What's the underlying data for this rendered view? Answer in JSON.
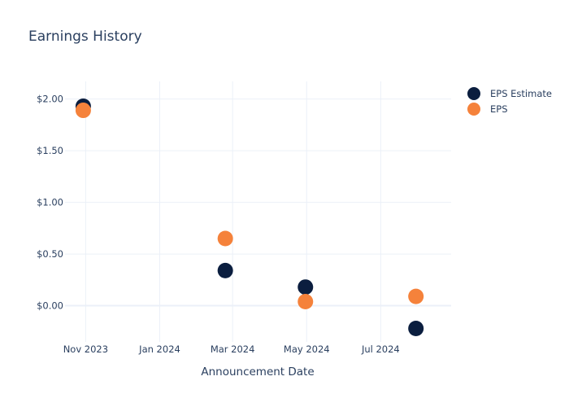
{
  "chart_data": {
    "type": "scatter",
    "title": "Earnings History",
    "xlabel": "Announcement Date",
    "ylabel": "",
    "ylim": [
      -0.35,
      2.17
    ],
    "xlim": [
      "2023-10-15",
      "2024-08-28"
    ],
    "x_ticks": [
      {
        "date": "2023-11-01",
        "label": "Nov 2023"
      },
      {
        "date": "2024-01-01",
        "label": "Jan 2024"
      },
      {
        "date": "2024-03-01",
        "label": "Mar 2024"
      },
      {
        "date": "2024-05-01",
        "label": "May 2024"
      },
      {
        "date": "2024-07-01",
        "label": "Jul 2024"
      }
    ],
    "y_ticks": [
      {
        "value": 0.0,
        "label": "$0.00"
      },
      {
        "value": 0.5,
        "label": "$0.50"
      },
      {
        "value": 1.0,
        "label": "$1.00"
      },
      {
        "value": 1.5,
        "label": "$1.50"
      },
      {
        "value": 2.0,
        "label": "$2.00"
      }
    ],
    "grid": true,
    "legend_position": "top-right",
    "series": [
      {
        "name": "EPS Estimate",
        "color": "#0b1e3f",
        "points": [
          {
            "x": "2023-10-30",
            "y": 1.93
          },
          {
            "x": "2024-02-24",
            "y": 0.34
          },
          {
            "x": "2024-04-30",
            "y": 0.18
          },
          {
            "x": "2024-07-30",
            "y": -0.22
          }
        ]
      },
      {
        "name": "EPS",
        "color": "#f5823b",
        "points": [
          {
            "x": "2023-10-30",
            "y": 1.89
          },
          {
            "x": "2024-02-24",
            "y": 0.65
          },
          {
            "x": "2024-04-30",
            "y": 0.04
          },
          {
            "x": "2024-07-30",
            "y": 0.09
          }
        ]
      }
    ]
  }
}
